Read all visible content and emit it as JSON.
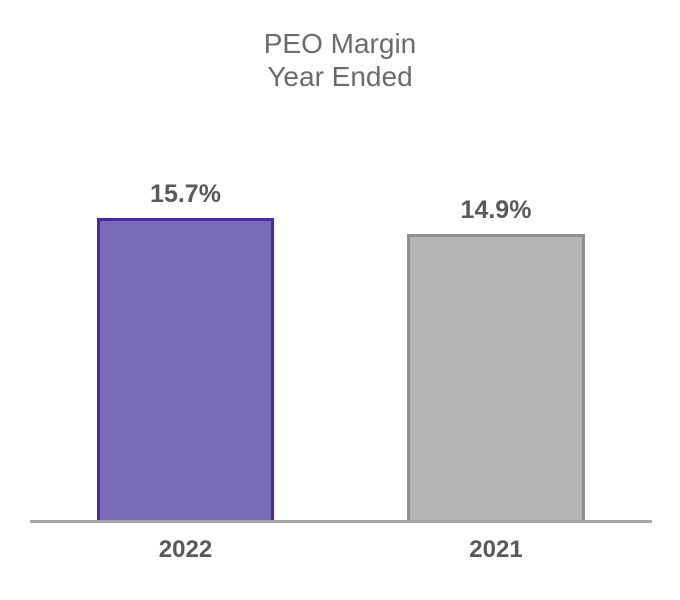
{
  "chart_data": {
    "type": "bar",
    "title": "PEO Margin",
    "subtitle": "Year Ended",
    "categories": [
      "2022",
      "2021"
    ],
    "values": [
      15.7,
      14.9
    ],
    "value_labels": [
      "15.7%",
      "14.9%"
    ],
    "ylim": [
      0,
      16.5
    ],
    "xlabel": "",
    "ylabel": "",
    "grid": false,
    "legend": false,
    "bar_colors": [
      {
        "fill": "#7a6bb5",
        "border": "#4d24ac"
      },
      {
        "fill": "#b5b5b5",
        "border": "#8f8f8f"
      }
    ],
    "axis_line_color": "#a6a6a6",
    "title_color": "#6b6b6b",
    "label_color": "#595959"
  }
}
